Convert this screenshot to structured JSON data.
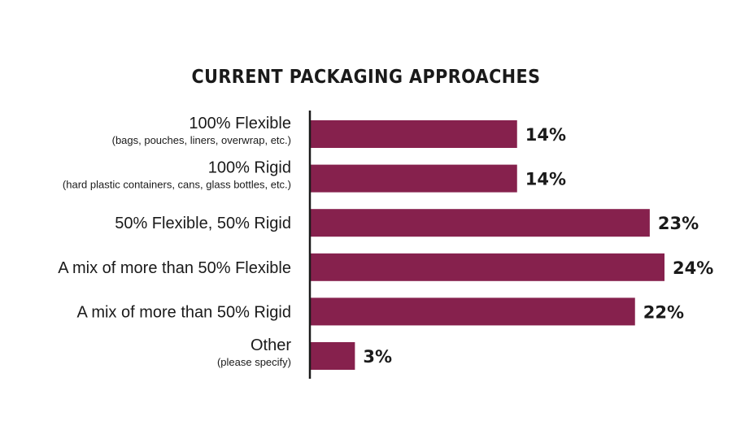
{
  "chart_data": {
    "type": "bar",
    "orientation": "horizontal",
    "title": "CURRENT PACKAGING APPROACHES",
    "categories": [
      {
        "label": "100% Flexible",
        "sublabel": "(bags, pouches, liners, overwrap, etc.)"
      },
      {
        "label": "100% Rigid",
        "sublabel": "(hard plastic containers, cans, glass bottles, etc.)"
      },
      {
        "label": "50% Flexible, 50% Rigid",
        "sublabel": ""
      },
      {
        "label": "A mix of more than 50% Flexible",
        "sublabel": ""
      },
      {
        "label": "A mix of more than 50% Rigid",
        "sublabel": ""
      },
      {
        "label": "Other",
        "sublabel": "(please specify)"
      }
    ],
    "values": [
      14,
      14,
      23,
      24,
      22,
      3
    ],
    "value_labels": [
      "14%",
      "14%",
      "23%",
      "24%",
      "22%",
      "3%"
    ],
    "xlim": [
      0,
      24
    ],
    "grid": false,
    "legend": "none",
    "colors": {
      "bar": "#86214d",
      "axis": "#1a1a1a",
      "text": "#1a1a1a"
    }
  }
}
